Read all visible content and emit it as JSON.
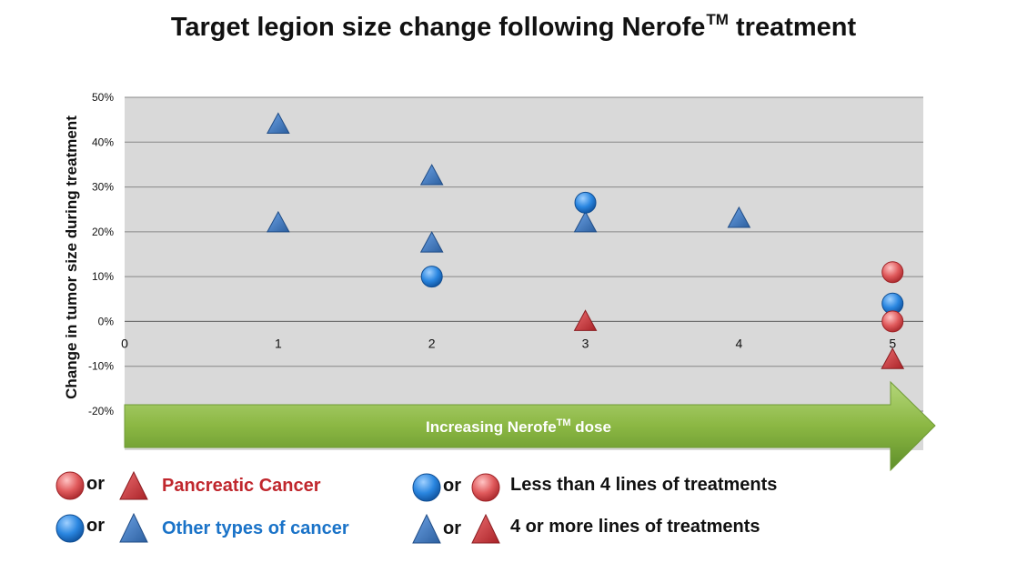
{
  "title": {
    "main": "Target legion size change following Nerofe",
    "superscript": "TM",
    "tail": " treatment"
  },
  "chart_data": {
    "type": "scatter",
    "title": "Target legion size change following NerofeTM treatment",
    "xlabel": "",
    "ylabel": "Change in tumor size during treatment",
    "xlim": [
      0,
      5.2
    ],
    "ylim": [
      -20,
      50
    ],
    "x_ticks": [
      "0",
      "1",
      "2",
      "3",
      "4",
      "5"
    ],
    "y_ticks": [
      "50%",
      "40%",
      "30%",
      "20%",
      "10%",
      "0%",
      "-10%",
      "-20%"
    ],
    "grid": true,
    "series": [
      {
        "cancer": "Other types of cancer",
        "treatment_lines": "4 or more lines of treatments",
        "marker": "triangle",
        "color": "#3d70b8",
        "points": [
          [
            1,
            44
          ],
          [
            1,
            22
          ],
          [
            2,
            32.5
          ],
          [
            2,
            17.5
          ],
          [
            3,
            22
          ],
          [
            4,
            23
          ]
        ]
      },
      {
        "cancer": "Other types of cancer",
        "treatment_lines": "Less than 4 lines of treatments",
        "marker": "circle",
        "color": "#1f6fc8",
        "points": [
          [
            2,
            10
          ],
          [
            3,
            26.5
          ],
          [
            5,
            4
          ]
        ]
      },
      {
        "cancer": "Pancreatic Cancer",
        "treatment_lines": "Less than 4 lines of treatments",
        "marker": "circle",
        "color": "#d9454a",
        "points": [
          [
            5,
            11
          ],
          [
            5,
            0
          ]
        ]
      },
      {
        "cancer": "Pancreatic Cancer",
        "treatment_lines": "4 or more lines of treatments",
        "marker": "triangle",
        "color": "#c9333a",
        "points": [
          [
            3,
            0
          ],
          [
            5,
            -8.5
          ]
        ]
      }
    ],
    "annotation": {
      "main": "Increasing Nerofe",
      "superscript": "TM",
      "tail": " dose"
    },
    "colors": {
      "plot_bg": "#d9d9d9",
      "grid": "#888888",
      "arrow": "#8db848",
      "pancreatic_text": "#c0272d",
      "other_text": "#1a73c8"
    }
  },
  "legend": {
    "or_label": "or",
    "pancreatic": "Pancreatic Cancer",
    "other": "Other types of cancer",
    "less_than_4": "Less than 4 lines of treatments",
    "four_or_more": "4 or more lines of treatments"
  }
}
